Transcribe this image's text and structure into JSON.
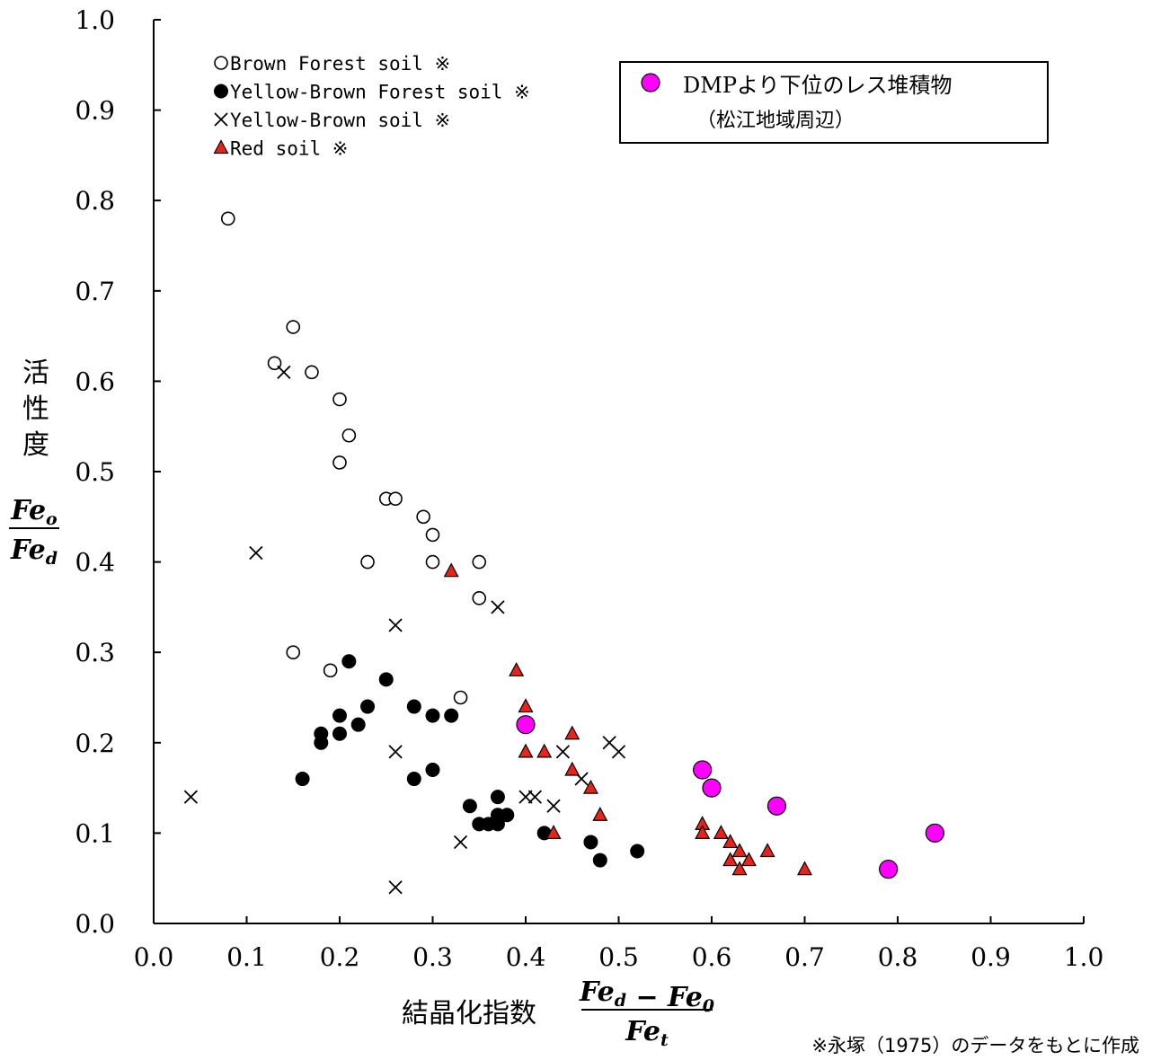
{
  "chart_data": {
    "type": "scatter",
    "xlabel": "結晶化指数",
    "xlabel_formula": {
      "numerator": "Fe_d − Fe_0",
      "denominator": "Fe_t"
    },
    "ylabel": "活性度",
    "ylabel_formula": {
      "numerator": "Fe_o",
      "denominator": "Fe_d"
    },
    "xlim": [
      0.0,
      1.0
    ],
    "ylim": [
      0.0,
      1.0
    ],
    "x_ticks": [
      "0.0",
      "0.1",
      "0.2",
      "0.3",
      "0.4",
      "0.5",
      "0.6",
      "0.7",
      "0.8",
      "0.9",
      "1.0"
    ],
    "y_ticks": [
      "0.0",
      "0.1",
      "0.2",
      "0.3",
      "0.4",
      "0.5",
      "0.6",
      "0.7",
      "0.8",
      "0.9",
      "1.0"
    ],
    "grid": false,
    "legend_position": "top-left",
    "note": "※永塚（1975）のデータをもとに作成",
    "series": [
      {
        "name": "Brown Forest soil ※",
        "marker": "open-circle",
        "color": "#000000",
        "points": [
          [
            0.08,
            0.78
          ],
          [
            0.15,
            0.66
          ],
          [
            0.13,
            0.62
          ],
          [
            0.17,
            0.61
          ],
          [
            0.2,
            0.58
          ],
          [
            0.21,
            0.54
          ],
          [
            0.2,
            0.51
          ],
          [
            0.25,
            0.47
          ],
          [
            0.26,
            0.47
          ],
          [
            0.29,
            0.45
          ],
          [
            0.3,
            0.43
          ],
          [
            0.23,
            0.4
          ],
          [
            0.3,
            0.4
          ],
          [
            0.35,
            0.4
          ],
          [
            0.35,
            0.36
          ],
          [
            0.15,
            0.3
          ],
          [
            0.19,
            0.28
          ],
          [
            0.33,
            0.25
          ]
        ]
      },
      {
        "name": "Yellow-Brown Forest soil ※",
        "marker": "filled-circle",
        "color": "#000000",
        "points": [
          [
            0.21,
            0.29
          ],
          [
            0.25,
            0.27
          ],
          [
            0.23,
            0.24
          ],
          [
            0.28,
            0.24
          ],
          [
            0.2,
            0.23
          ],
          [
            0.3,
            0.23
          ],
          [
            0.32,
            0.23
          ],
          [
            0.22,
            0.22
          ],
          [
            0.18,
            0.21
          ],
          [
            0.2,
            0.21
          ],
          [
            0.18,
            0.2
          ],
          [
            0.16,
            0.16
          ],
          [
            0.28,
            0.16
          ],
          [
            0.3,
            0.17
          ],
          [
            0.37,
            0.14
          ],
          [
            0.34,
            0.13
          ],
          [
            0.37,
            0.12
          ],
          [
            0.38,
            0.12
          ],
          [
            0.35,
            0.11
          ],
          [
            0.36,
            0.11
          ],
          [
            0.37,
            0.11
          ],
          [
            0.42,
            0.1
          ],
          [
            0.47,
            0.09
          ],
          [
            0.52,
            0.08
          ],
          [
            0.48,
            0.07
          ]
        ]
      },
      {
        "name": "Yellow-Brown soil ※",
        "marker": "cross",
        "color": "#000000",
        "points": [
          [
            0.14,
            0.61
          ],
          [
            0.11,
            0.41
          ],
          [
            0.37,
            0.35
          ],
          [
            0.26,
            0.33
          ],
          [
            0.26,
            0.19
          ],
          [
            0.44,
            0.19
          ],
          [
            0.49,
            0.2
          ],
          [
            0.5,
            0.19
          ],
          [
            0.46,
            0.16
          ],
          [
            0.4,
            0.14
          ],
          [
            0.41,
            0.14
          ],
          [
            0.43,
            0.13
          ],
          [
            0.04,
            0.14
          ],
          [
            0.33,
            0.09
          ],
          [
            0.26,
            0.04
          ]
        ]
      },
      {
        "name": "Red soil ※",
        "marker": "triangle",
        "color": "#e8231a",
        "points": [
          [
            0.32,
            0.39
          ],
          [
            0.39,
            0.28
          ],
          [
            0.4,
            0.24
          ],
          [
            0.45,
            0.21
          ],
          [
            0.4,
            0.19
          ],
          [
            0.42,
            0.19
          ],
          [
            0.45,
            0.17
          ],
          [
            0.47,
            0.15
          ],
          [
            0.48,
            0.12
          ],
          [
            0.43,
            0.1
          ],
          [
            0.59,
            0.11
          ],
          [
            0.59,
            0.1
          ],
          [
            0.61,
            0.1
          ],
          [
            0.62,
            0.09
          ],
          [
            0.63,
            0.08
          ],
          [
            0.66,
            0.08
          ],
          [
            0.62,
            0.07
          ],
          [
            0.64,
            0.07
          ],
          [
            0.63,
            0.06
          ],
          [
            0.7,
            0.06
          ]
        ]
      },
      {
        "name": "DMPより下位のレス堆積物",
        "name_sub": "（松江地域周辺）",
        "marker": "magenta-circle",
        "color": "#ff00ff",
        "points": [
          [
            0.4,
            0.22
          ],
          [
            0.59,
            0.17
          ],
          [
            0.6,
            0.15
          ],
          [
            0.67,
            0.13
          ],
          [
            0.84,
            0.1
          ],
          [
            0.79,
            0.06
          ]
        ]
      }
    ]
  }
}
